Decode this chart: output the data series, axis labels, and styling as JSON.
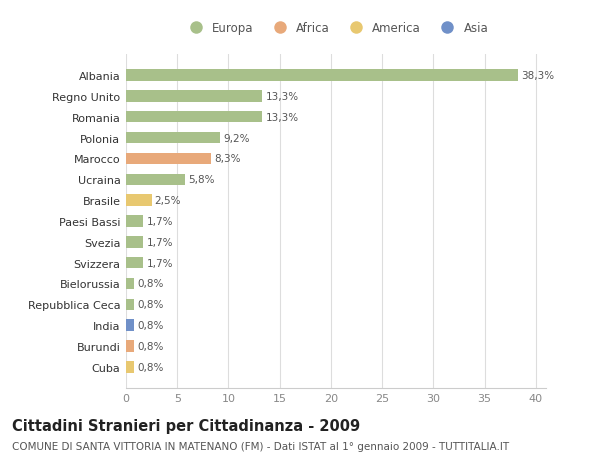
{
  "title": "Cittadini Stranieri per Cittadinanza - 2009",
  "subtitle": "COMUNE DI SANTA VITTORIA IN MATENANO (FM) - Dati ISTAT al 1° gennaio 2009 - TUTTITALIA.IT",
  "categories": [
    "Albania",
    "Regno Unito",
    "Romania",
    "Polonia",
    "Marocco",
    "Ucraina",
    "Brasile",
    "Paesi Bassi",
    "Svezia",
    "Svizzera",
    "Bielorussia",
    "Repubblica Ceca",
    "India",
    "Burundi",
    "Cuba"
  ],
  "values": [
    38.3,
    13.3,
    13.3,
    9.2,
    8.3,
    5.8,
    2.5,
    1.7,
    1.7,
    1.7,
    0.8,
    0.8,
    0.8,
    0.8,
    0.8
  ],
  "labels": [
    "38,3%",
    "13,3%",
    "13,3%",
    "9,2%",
    "8,3%",
    "5,8%",
    "2,5%",
    "1,7%",
    "1,7%",
    "1,7%",
    "0,8%",
    "0,8%",
    "0,8%",
    "0,8%",
    "0,8%"
  ],
  "colors": [
    "#a8c08a",
    "#a8c08a",
    "#a8c08a",
    "#a8c08a",
    "#e8a97a",
    "#a8c08a",
    "#e8c870",
    "#a8c08a",
    "#a8c08a",
    "#a8c08a",
    "#a8c08a",
    "#a8c08a",
    "#7090c8",
    "#e8a97a",
    "#e8c870"
  ],
  "legend_labels": [
    "Europa",
    "Africa",
    "America",
    "Asia"
  ],
  "legend_colors": [
    "#a8c08a",
    "#e8a97a",
    "#e8c870",
    "#7090c8"
  ],
  "xlim": [
    0,
    41
  ],
  "xticks": [
    0,
    5,
    10,
    15,
    20,
    25,
    30,
    35,
    40
  ],
  "background_color": "#ffffff",
  "bar_height": 0.55,
  "grid_color": "#dddddd",
  "title_fontsize": 10.5,
  "subtitle_fontsize": 7.5,
  "label_fontsize": 7.5,
  "tick_fontsize": 8,
  "legend_fontsize": 8.5
}
